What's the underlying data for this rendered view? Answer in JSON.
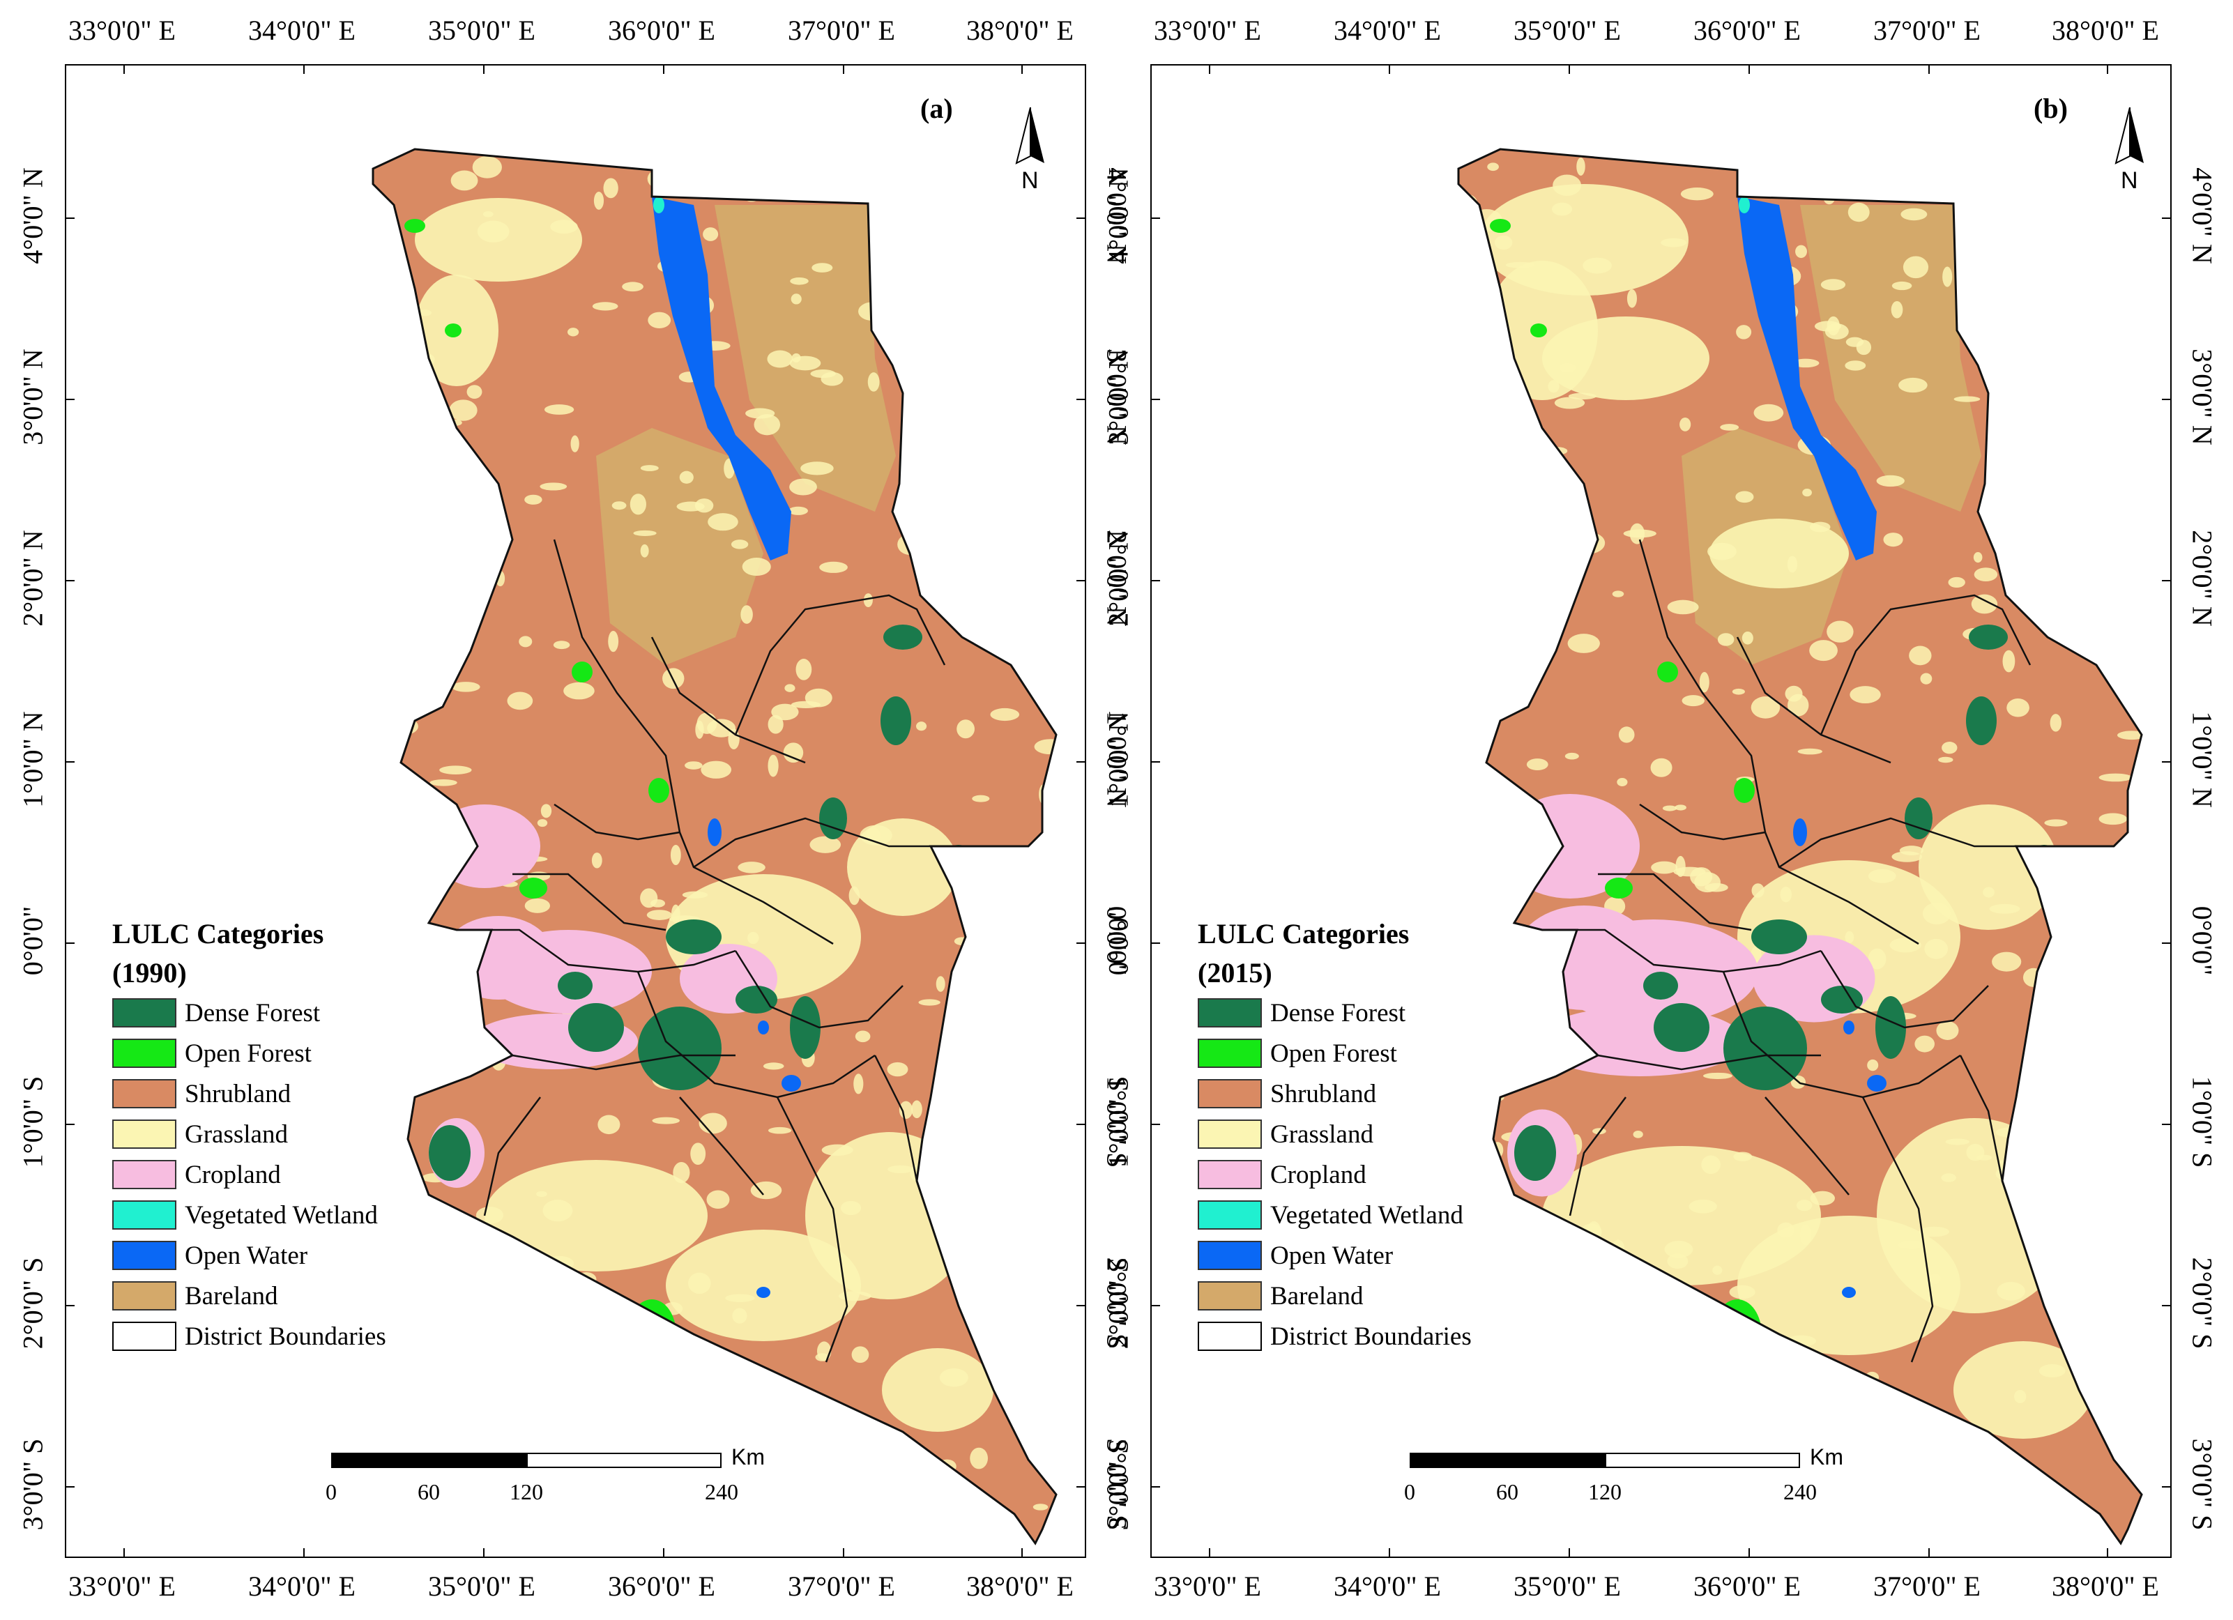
{
  "x_axis_labels": [
    "33°0'0\" E",
    "34°0'0\" E",
    "35°0'0\" E",
    "36°0'0\" E",
    "37°0'0\" E",
    "38°0'0\" E"
  ],
  "y_axis_labels": [
    "4°0'0\" N",
    "3°0'0\" N",
    "2°0'0\" N",
    "1°0'0\" N",
    "0°0'0\"",
    "1°0'0\" S",
    "2°0'0\" S",
    "3°0'0\" S"
  ],
  "panels": [
    {
      "label": "(a)",
      "north_label": "N",
      "legend": {
        "title": "LULC Categories",
        "year": "(1990)",
        "items": [
          {
            "label": "Dense Forest",
            "color": "#1a7a4c"
          },
          {
            "label": "Open Forest",
            "color": "#15e815"
          },
          {
            "label": "Shrubland",
            "color": "#d98a63"
          },
          {
            "label": "Grassland",
            "color": "#fbf5b3"
          },
          {
            "label": "Cropland",
            "color": "#f7bde0"
          },
          {
            "label": "Vegetated Wetland",
            "color": "#20f0d0"
          },
          {
            "label": "Open Water",
            "color": "#0a68f5"
          },
          {
            "label": "Bareland",
            "color": "#d4a96a"
          },
          {
            "label": "District Boundaries",
            "color": "#ffffff"
          }
        ]
      },
      "scale": {
        "unit": "Km",
        "ticks": [
          "0",
          "60",
          "120",
          "240"
        ]
      }
    },
    {
      "label": "(b)",
      "north_label": "N",
      "legend": {
        "title": "LULC Categories",
        "year": "(2015)",
        "items": [
          {
            "label": "Dense Forest",
            "color": "#1a7a4c"
          },
          {
            "label": "Open Forest",
            "color": "#15e815"
          },
          {
            "label": "Shrubland",
            "color": "#d98a63"
          },
          {
            "label": "Grassland",
            "color": "#fbf5b3"
          },
          {
            "label": "Cropland",
            "color": "#f7bde0"
          },
          {
            "label": "Vegetated Wetland",
            "color": "#20f0d0"
          },
          {
            "label": "Open Water",
            "color": "#0a68f5"
          },
          {
            "label": "Bareland",
            "color": "#d4a96a"
          },
          {
            "label": "District Boundaries",
            "color": "#ffffff"
          }
        ]
      },
      "scale": {
        "unit": "Km",
        "ticks": [
          "0",
          "60",
          "120",
          "240"
        ]
      }
    }
  ]
}
